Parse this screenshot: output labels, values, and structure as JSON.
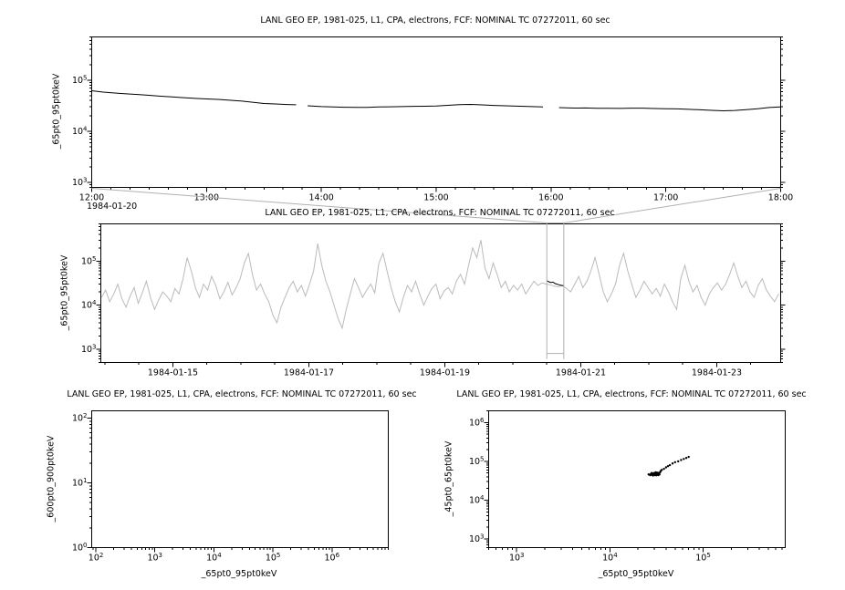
{
  "palette": {
    "line": "#000000",
    "context_line": "#bababa",
    "selection": "#b0b0b0",
    "frame": "#000000",
    "background": "#ffffff"
  },
  "chart_data": [
    {
      "id": "zoom-timeseries",
      "type": "line",
      "title": "LANL GEO EP, 1981-025, L1, CPA, electrons, FCF: NOMINAL TC 07272011, 60 sec",
      "ylabel": "_65pt0_95pt0keV",
      "xlabel": "",
      "x_context_label": "1984-01-20",
      "xaxis": {
        "scale": "linear",
        "lim": [
          12,
          18
        ],
        "minor_step": 0.1666667,
        "ticks": [
          {
            "v": 12,
            "label": "12:00"
          },
          {
            "v": 13,
            "label": "13:00"
          },
          {
            "v": 14,
            "label": "14:00"
          },
          {
            "v": 15,
            "label": "15:00"
          },
          {
            "v": 16,
            "label": "16:00"
          },
          {
            "v": 17,
            "label": "17:00"
          },
          {
            "v": 18,
            "label": "18:00"
          }
        ]
      },
      "yaxis": {
        "scale": "log",
        "lim": [
          800,
          700000
        ],
        "tick_exps": [
          3,
          4,
          5
        ]
      },
      "series": [
        {
          "name": "electron-flux-65-95keV",
          "color": "#000000",
          "draw": "line",
          "segments": [
            [
              [
                12.0,
                62000
              ],
              [
                12.1,
                58500
              ],
              [
                12.2,
                56000
              ],
              [
                12.3,
                54000
              ],
              [
                12.4,
                52500
              ],
              [
                12.5,
                50500
              ],
              [
                12.6,
                48500
              ],
              [
                12.7,
                47000
              ],
              [
                12.8,
                45500
              ],
              [
                12.9,
                44000
              ],
              [
                13.0,
                43000
              ],
              [
                13.1,
                42000
              ],
              [
                13.2,
                40500
              ],
              [
                13.3,
                39000
              ],
              [
                13.4,
                37000
              ],
              [
                13.5,
                35000
              ],
              [
                13.6,
                34200
              ],
              [
                13.7,
                33400
              ],
              [
                13.78,
                33000
              ]
            ],
            [
              [
                13.88,
                31500
              ],
              [
                14.0,
                30400
              ],
              [
                14.1,
                30000
              ],
              [
                14.2,
                29500
              ],
              [
                14.3,
                29400
              ],
              [
                14.4,
                29300
              ],
              [
                14.5,
                29900
              ],
              [
                14.6,
                30100
              ],
              [
                14.7,
                30400
              ],
              [
                14.8,
                30800
              ],
              [
                14.9,
                30900
              ],
              [
                15.0,
                31200
              ],
              [
                15.1,
                32200
              ],
              [
                15.2,
                33200
              ],
              [
                15.3,
                33600
              ],
              [
                15.4,
                32900
              ],
              [
                15.5,
                32100
              ],
              [
                15.6,
                31500
              ],
              [
                15.7,
                31000
              ],
              [
                15.8,
                30500
              ],
              [
                15.93,
                29900
              ]
            ],
            [
              [
                16.07,
                29000
              ],
              [
                16.2,
                28500
              ],
              [
                16.3,
                28600
              ],
              [
                16.4,
                28200
              ],
              [
                16.5,
                28100
              ],
              [
                16.6,
                28000
              ],
              [
                16.7,
                28400
              ],
              [
                16.8,
                28400
              ],
              [
                16.9,
                27900
              ],
              [
                17.0,
                27700
              ],
              [
                17.1,
                27400
              ],
              [
                17.2,
                26900
              ],
              [
                17.3,
                26300
              ],
              [
                17.4,
                25700
              ],
              [
                17.5,
                25200
              ],
              [
                17.6,
                25600
              ],
              [
                17.7,
                26400
              ],
              [
                17.8,
                27600
              ],
              [
                17.9,
                29200
              ],
              [
                18.0,
                30000
              ]
            ]
          ]
        }
      ]
    },
    {
      "id": "context-timeseries",
      "type": "line",
      "title": "LANL GEO EP, 1981-025, L1, CPA, electrons, FCF: NOMINAL TC 07272011, 60 sec",
      "ylabel": "_65pt0_95pt0keV",
      "xlabel": "",
      "xaxis": {
        "scale": "linear",
        "lim": [
          13.94,
          23.94
        ],
        "minor_step": 0.5,
        "ticks": [
          {
            "v": 15,
            "label": "1984-01-15"
          },
          {
            "v": 17,
            "label": "1984-01-17"
          },
          {
            "v": 19,
            "label": "1984-01-19"
          },
          {
            "v": 21,
            "label": "1984-01-21"
          },
          {
            "v": 23,
            "label": "1984-01-23"
          }
        ]
      },
      "yaxis": {
        "scale": "log",
        "lim": [
          500,
          700000
        ],
        "tick_exps": [
          3,
          4,
          5
        ]
      },
      "selection": {
        "x_start": 20.5,
        "x_end": 20.75
      },
      "series": [
        {
          "name": "context-flux",
          "color": "#bababa",
          "draw": "line",
          "x_start": 13.95,
          "x_step": 0.06,
          "y_values": [
            15000,
            22000,
            12000,
            18000,
            30000,
            14000,
            9000,
            16000,
            25000,
            11000,
            19000,
            35000,
            15000,
            8000,
            13000,
            20000,
            16000,
            12000,
            24000,
            18000,
            40000,
            120000,
            60000,
            25000,
            15000,
            30000,
            22000,
            45000,
            28000,
            14000,
            20000,
            33000,
            17000,
            25000,
            40000,
            90000,
            150000,
            50000,
            22000,
            30000,
            18000,
            12000,
            6000,
            4000,
            9000,
            15000,
            25000,
            35000,
            20000,
            28000,
            16000,
            30000,
            60000,
            250000,
            80000,
            35000,
            20000,
            10000,
            5000,
            3000,
            8000,
            18000,
            40000,
            25000,
            15000,
            22000,
            30000,
            19000,
            90000,
            150000,
            60000,
            25000,
            12000,
            7000,
            15000,
            28000,
            20000,
            35000,
            18000,
            10000,
            16000,
            24000,
            30000,
            14000,
            21000,
            25000,
            18000,
            35000,
            50000,
            30000,
            80000,
            200000,
            120000,
            300000,
            70000,
            40000,
            90000,
            50000,
            25000,
            35000,
            20000,
            28000,
            22000,
            30000,
            18000,
            25000,
            35000,
            28000,
            32000,
            30000,
            29000,
            27000,
            26000,
            28000,
            24000,
            20000,
            30000,
            45000,
            25000,
            35000,
            60000,
            120000,
            50000,
            20000,
            12000,
            18000,
            30000,
            80000,
            150000,
            60000,
            30000,
            15000,
            22000,
            35000,
            25000,
            18000,
            24000,
            16000,
            30000,
            20000,
            12000,
            8000,
            40000,
            80000,
            35000,
            20000,
            28000,
            15000,
            10000,
            18000,
            25000,
            32000,
            22000,
            30000,
            50000,
            90000,
            45000,
            25000,
            35000,
            20000,
            15000,
            28000,
            40000,
            22000,
            16000,
            12000,
            18000
          ]
        },
        {
          "name": "highlight-flux",
          "color": "#000000",
          "draw": "line",
          "points": [
            [
              20.5,
              36000
            ],
            [
              20.53,
              34000
            ],
            [
              20.56,
              32500
            ],
            [
              20.59,
              33500
            ],
            [
              20.62,
              31000
            ],
            [
              20.65,
              30000
            ],
            [
              20.68,
              29000
            ],
            [
              20.71,
              28200
            ],
            [
              20.75,
              27500
            ]
          ]
        }
      ]
    },
    {
      "id": "scatter-600-900",
      "type": "scatter",
      "title": "LANL GEO EP, 1981-025, L1, CPA, electrons, FCF: NOMINAL TC 07272011, 60 sec",
      "ylabel": "_600pt0_900pt0keV",
      "xlabel": "_65pt0_95pt0keV",
      "xaxis": {
        "scale": "log",
        "lim": [
          85,
          9000000
        ],
        "tick_exps": [
          2,
          3,
          4,
          5,
          6
        ]
      },
      "yaxis": {
        "scale": "log",
        "lim": [
          1,
          130
        ],
        "tick_exps": [
          0,
          1,
          2
        ]
      },
      "series": [
        {
          "name": "no-data",
          "color": "#000000",
          "draw": "scatter",
          "points": []
        }
      ]
    },
    {
      "id": "scatter-45-65",
      "type": "scatter",
      "title": "LANL GEO EP, 1981-025, L1, CPA, electrons, FCF: NOMINAL TC 07272011, 60 sec",
      "ylabel": "_45pt0_65pt0keV",
      "xlabel": "_65pt0_95pt0keV",
      "xaxis": {
        "scale": "log",
        "lim": [
          500,
          760000
        ],
        "tick_exps": [
          3,
          4,
          5
        ]
      },
      "yaxis": {
        "scale": "log",
        "lim": [
          600,
          2000000
        ],
        "tick_exps": [
          3,
          4,
          5,
          6
        ]
      },
      "series": [
        {
          "name": "flux-correlation",
          "color": "#000000",
          "draw": "scatter",
          "points": [
            [
              26000,
              46000
            ],
            [
              27000,
              44000
            ],
            [
              28000,
              45000
            ],
            [
              28500,
              48000
            ],
            [
              29000,
              43000
            ],
            [
              29500,
              47000
            ],
            [
              30000,
              45000
            ],
            [
              30500,
              44000
            ],
            [
              31000,
              46000
            ],
            [
              31500,
              43500
            ],
            [
              32000,
              47000
            ],
            [
              32500,
              45500
            ],
            [
              33000,
              44000
            ],
            [
              33500,
              48000
            ],
            [
              34000,
              46000
            ],
            [
              30000,
              50000
            ],
            [
              31000,
              52000
            ],
            [
              29000,
              49000
            ],
            [
              32000,
              51000
            ],
            [
              28000,
              50000
            ],
            [
              27500,
              47500
            ],
            [
              33000,
              50500
            ],
            [
              34500,
              52000
            ],
            [
              30500,
              48500
            ],
            [
              29500,
              46500
            ],
            [
              35000,
              56000
            ],
            [
              36000,
              60000
            ],
            [
              38000,
              64000
            ],
            [
              40000,
              70000
            ],
            [
              42000,
              75000
            ],
            [
              44000,
              80000
            ],
            [
              47000,
              88000
            ],
            [
              50000,
              95000
            ],
            [
              54000,
              100000
            ],
            [
              58000,
              108000
            ],
            [
              62000,
              115000
            ],
            [
              66000,
              122000
            ],
            [
              70000,
              130000
            ]
          ]
        }
      ]
    }
  ]
}
